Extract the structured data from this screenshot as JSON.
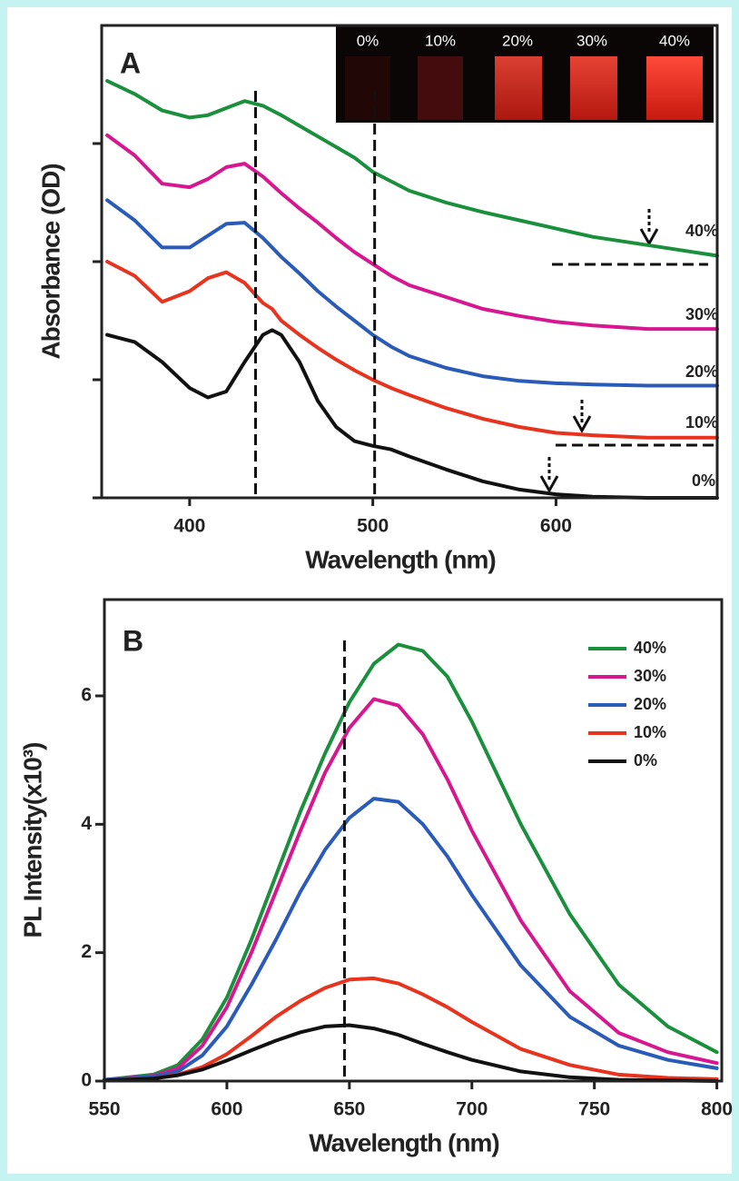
{
  "chart_data": [
    {
      "type": "line",
      "panel": "A",
      "ylabel": "Absorbance (OD)",
      "xlabel": "Wavelength (nm)",
      "xlim": [
        352,
        688
      ],
      "ylim": [
        0,
        4
      ],
      "xticks": [
        400,
        500,
        600
      ],
      "yticks": [
        0,
        1,
        2,
        3
      ],
      "ytick_labels": false,
      "vlines": [
        436,
        501
      ],
      "inset_labels": [
        "0%",
        "10%",
        "20%",
        "30%",
        "40%"
      ],
      "x": [
        355,
        370,
        385,
        400,
        410,
        420,
        430,
        440,
        445,
        450,
        460,
        470,
        480,
        490,
        500,
        510,
        520,
        540,
        560,
        580,
        600,
        620,
        650,
        688
      ],
      "series": [
        {
          "name": "40%",
          "color": "#1a8f3c",
          "values": [
            3.53,
            3.42,
            3.28,
            3.22,
            3.24,
            3.3,
            3.36,
            3.32,
            3.28,
            3.24,
            3.15,
            3.06,
            2.97,
            2.88,
            2.76,
            2.68,
            2.6,
            2.5,
            2.42,
            2.35,
            2.28,
            2.21,
            2.14,
            2.05
          ]
        },
        {
          "name": "30%",
          "color": "#d6178f",
          "values": [
            3.07,
            2.9,
            2.66,
            2.63,
            2.7,
            2.8,
            2.83,
            2.72,
            2.65,
            2.58,
            2.45,
            2.33,
            2.2,
            2.08,
            1.98,
            1.88,
            1.8,
            1.7,
            1.6,
            1.54,
            1.49,
            1.46,
            1.43,
            1.43
          ]
        },
        {
          "name": "20%",
          "color": "#2a5bb8",
          "values": [
            2.52,
            2.35,
            2.12,
            2.12,
            2.22,
            2.32,
            2.33,
            2.2,
            2.12,
            2.04,
            1.9,
            1.75,
            1.62,
            1.5,
            1.38,
            1.28,
            1.2,
            1.1,
            1.03,
            0.99,
            0.97,
            0.96,
            0.95,
            0.95
          ]
        },
        {
          "name": "10%",
          "color": "#e8331e",
          "values": [
            2.0,
            1.88,
            1.66,
            1.75,
            1.86,
            1.91,
            1.82,
            1.65,
            1.6,
            1.5,
            1.38,
            1.27,
            1.17,
            1.08,
            1.0,
            0.93,
            0.87,
            0.76,
            0.67,
            0.6,
            0.55,
            0.53,
            0.51,
            0.51
          ]
        },
        {
          "name": "0%",
          "color": "#111111",
          "values": [
            1.38,
            1.32,
            1.15,
            0.93,
            0.85,
            0.9,
            1.15,
            1.38,
            1.42,
            1.38,
            1.15,
            0.82,
            0.6,
            0.48,
            0.44,
            0.41,
            0.35,
            0.24,
            0.14,
            0.07,
            0.03,
            0.01,
            0,
            0
          ]
        }
      ]
    },
    {
      "type": "line",
      "panel": "B",
      "ylabel": "PL Intensity(x10³)",
      "xlabel": "Wavelength (nm)",
      "xlim": [
        550,
        802
      ],
      "ylim": [
        0,
        7.5
      ],
      "xticks": [
        550,
        600,
        650,
        700,
        750,
        800
      ],
      "yticks": [
        0,
        2,
        4,
        6
      ],
      "ytick_labels": true,
      "vlines": [
        648
      ],
      "legend": "upper right",
      "x": [
        550,
        570,
        580,
        590,
        600,
        610,
        620,
        630,
        640,
        650,
        660,
        670,
        680,
        690,
        700,
        720,
        740,
        760,
        780,
        800
      ],
      "series": [
        {
          "name": "40%",
          "color": "#1a8f3c",
          "values": [
            0.02,
            0.1,
            0.25,
            0.65,
            1.3,
            2.2,
            3.2,
            4.2,
            5.1,
            5.9,
            6.5,
            6.8,
            6.7,
            6.3,
            5.6,
            4.0,
            2.6,
            1.5,
            0.85,
            0.45
          ]
        },
        {
          "name": "30%",
          "color": "#d6178f",
          "values": [
            0.02,
            0.08,
            0.2,
            0.55,
            1.15,
            2.0,
            2.95,
            3.9,
            4.8,
            5.5,
            5.95,
            5.85,
            5.4,
            4.7,
            3.9,
            2.5,
            1.4,
            0.75,
            0.45,
            0.28
          ]
        },
        {
          "name": "20%",
          "color": "#2a5bb8",
          "values": [
            0.02,
            0.07,
            0.15,
            0.4,
            0.85,
            1.5,
            2.2,
            2.95,
            3.6,
            4.1,
            4.4,
            4.35,
            4.0,
            3.5,
            2.9,
            1.8,
            1.0,
            0.55,
            0.33,
            0.2
          ]
        },
        {
          "name": "10%",
          "color": "#e8331e",
          "values": [
            0.01,
            0.04,
            0.1,
            0.22,
            0.42,
            0.7,
            1.0,
            1.25,
            1.45,
            1.58,
            1.6,
            1.52,
            1.35,
            1.15,
            0.92,
            0.5,
            0.25,
            0.1,
            0.05,
            0.03
          ]
        },
        {
          "name": "0%",
          "color": "#111111",
          "values": [
            0.01,
            0.04,
            0.09,
            0.18,
            0.32,
            0.48,
            0.63,
            0.76,
            0.85,
            0.87,
            0.82,
            0.72,
            0.58,
            0.45,
            0.33,
            0.15,
            0.06,
            0.02,
            0.01,
            0
          ]
        }
      ]
    }
  ]
}
